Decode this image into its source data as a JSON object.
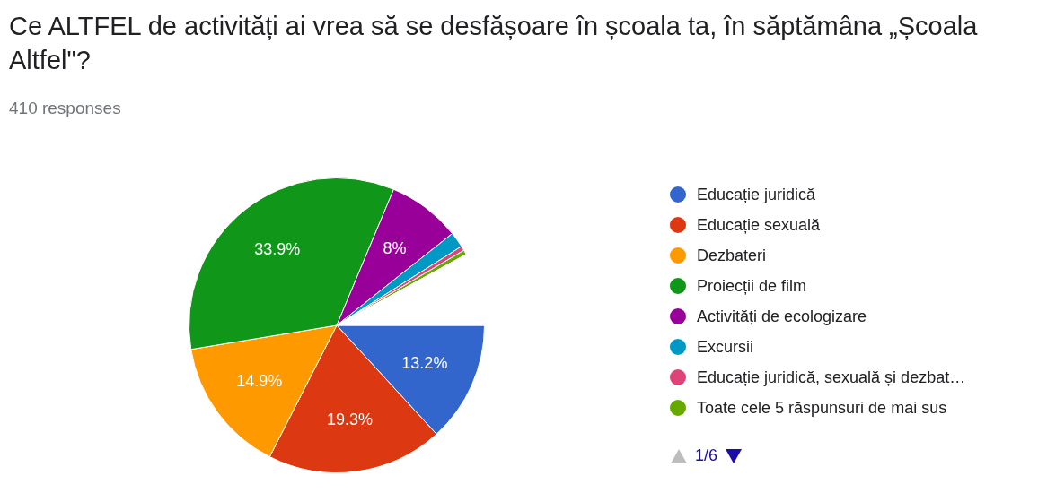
{
  "chart_data": {
    "type": "pie",
    "title": "Ce ALTFEL de activități ai vrea să se desfășoare în școala ta, în săptămâna „Școala Altfel\"?",
    "subtitle": "410 responses",
    "categories": [
      "Educație juridică",
      "Educație sexuală",
      "Dezbateri",
      "Proiecții de film",
      "Activități de ecologizare",
      "Excursii",
      "Educație juridică, sexuală și dezbat…",
      "Toate cele 5 răspunsuri de mai sus",
      null
    ],
    "values": [
      13.2,
      19.3,
      14.9,
      33.9,
      8,
      1.7,
      0.5,
      0.5,
      8.0
    ],
    "colors": [
      "#3366cc",
      "#dc3912",
      "#ff9900",
      "#109618",
      "#990099",
      "#0099c6",
      "#dd4477",
      "#66aa00",
      "#ffffff"
    ],
    "value_labels": [
      "13.2%",
      "19.3%",
      "14.9%",
      "33.9%",
      "8%",
      null,
      null,
      null,
      null
    ],
    "legend": "right",
    "annotations": [
      "1/6"
    ]
  }
}
